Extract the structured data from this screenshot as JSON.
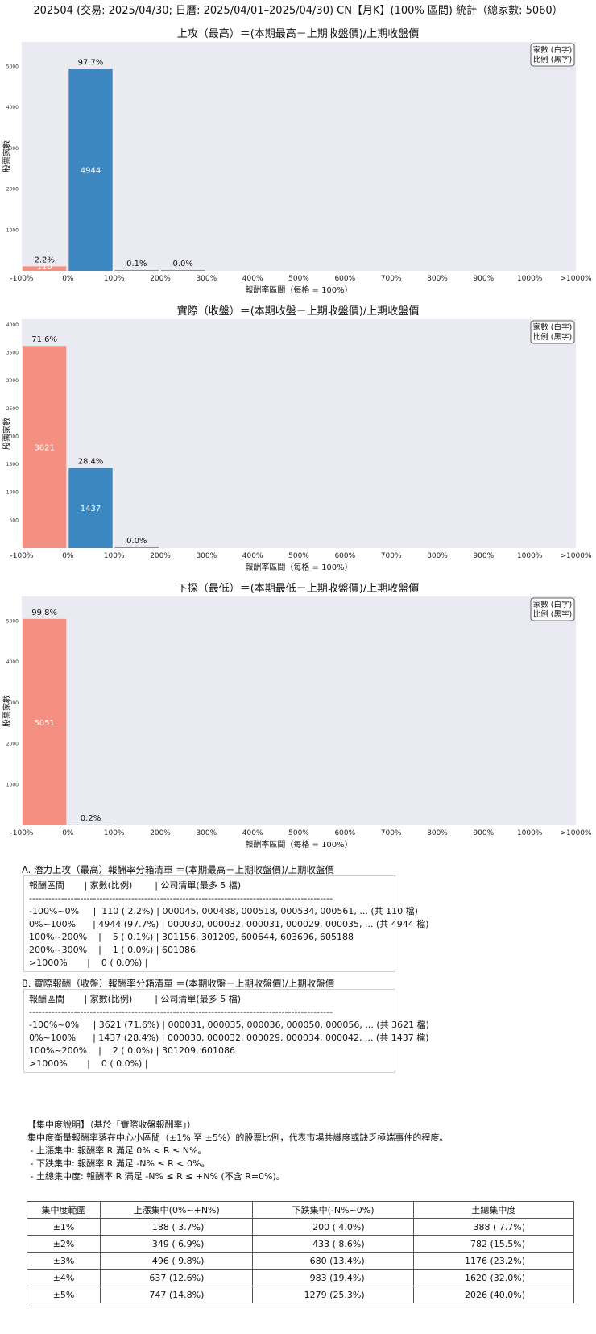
{
  "page_title": "202504 (交易: 2025/04/30; 日曆: 2025/04/01–2025/04/30) CN【月K】(100% 區間) 統計（總家數: 5060）",
  "colors": {
    "positive": "#3d87c0",
    "negative": "#f58f82",
    "plot_bg": "#eaeaf2"
  },
  "chart_data": [
    {
      "type": "bar",
      "title": "上攻（最高）＝(本期最高－上期收盤價)/上期收盤價",
      "xlabel": "報酬率區間（每格 = 100%）",
      "ylabel": "股票家數",
      "legend": [
        "家數 (白字)",
        "比例 (黑字)"
      ],
      "legend_position": "top-right",
      "x_tick_labels": [
        "-100%",
        "0%",
        "100%",
        "200%",
        "300%",
        "400%",
        "500%",
        "600%",
        "700%",
        "800%",
        "900%",
        "1000%",
        ">1000%"
      ],
      "y_ticks": [
        1000,
        2000,
        3000,
        4000,
        5000
      ],
      "ylim": [
        0,
        5600
      ],
      "bars": [
        {
          "bin": "-100%~0%",
          "count": 110,
          "pct_label": "2.2%",
          "count_label": "110",
          "sign": "negative"
        },
        {
          "bin": "0%~100%",
          "count": 4944,
          "pct_label": "97.7%",
          "count_label": "4944",
          "sign": "positive"
        },
        {
          "bin": "100%~200%",
          "count": 5,
          "pct_label": "0.1%",
          "count_label": "",
          "sign": "positive"
        },
        {
          "bin": "200%~300%",
          "count": 1,
          "pct_label": "0.0%",
          "count_label": "",
          "sign": "positive"
        }
      ]
    },
    {
      "type": "bar",
      "title": "實際（收盤）＝(本期收盤－上期收盤價)/上期收盤價",
      "xlabel": "報酬率區間（每格 = 100%）",
      "ylabel": "股票家數",
      "legend": [
        "家數 (白字)",
        "比例 (黑字)"
      ],
      "legend_position": "top-right",
      "x_tick_labels": [
        "-100%",
        "0%",
        "100%",
        "200%",
        "300%",
        "400%",
        "500%",
        "600%",
        "700%",
        "800%",
        "900%",
        "1000%",
        ">1000%"
      ],
      "y_ticks": [
        500,
        1000,
        1500,
        2000,
        2500,
        3000,
        3500,
        4000
      ],
      "ylim": [
        0,
        4100
      ],
      "bars": [
        {
          "bin": "-100%~0%",
          "count": 3621,
          "pct_label": "71.6%",
          "count_label": "3621",
          "sign": "negative"
        },
        {
          "bin": "0%~100%",
          "count": 1437,
          "pct_label": "28.4%",
          "count_label": "1437",
          "sign": "positive"
        },
        {
          "bin": "100%~200%",
          "count": 2,
          "pct_label": "0.0%",
          "count_label": "",
          "sign": "positive"
        }
      ]
    },
    {
      "type": "bar",
      "title": "下探（最低）＝(本期最低－上期收盤價)/上期收盤價",
      "xlabel": "報酬率區間（每格 = 100%）",
      "ylabel": "股票家數",
      "legend": [
        "家數 (白字)",
        "比例 (黑字)"
      ],
      "legend_position": "top-right",
      "x_tick_labels": [
        "-100%",
        "0%",
        "100%",
        "200%",
        "300%",
        "400%",
        "500%",
        "600%",
        "700%",
        "800%",
        "900%",
        "1000%",
        ">1000%"
      ],
      "y_ticks": [
        1000,
        2000,
        3000,
        4000,
        5000
      ],
      "ylim": [
        0,
        5600
      ],
      "bars": [
        {
          "bin": "-100%~0%",
          "count": 5051,
          "pct_label": "99.8%",
          "count_label": "5051",
          "sign": "negative"
        },
        {
          "bin": "0%~100%",
          "count": 9,
          "pct_label": "0.2%",
          "count_label": "",
          "sign": "positive"
        }
      ]
    }
  ],
  "section_a": {
    "heading": "A. 潛力上攻（最高）報酬率分箱清單 ＝(本期最高－上期收盤價)/上期收盤價",
    "lines": [
      "報酬區間       | 家數(比例)        | 公司清單(最多 5 檔)",
      "-----------------------------------------------------------------------------------------------",
      "-100%~0%     |  110 ( 2.2%) | 000045, 000488, 000518, 000534, 000561, ... (共 110 檔)",
      "0%~100%      | 4944 (97.7%) | 000030, 000032, 000031, 000029, 000035, ... (共 4944 檔)",
      "100%~200%    |    5 ( 0.1%) | 301156, 301209, 600644, 603696, 605188",
      "200%~300%    |    1 ( 0.0%) | 601086",
      ">1000%       |    0 ( 0.0%) |"
    ]
  },
  "section_b": {
    "heading": "B. 實際報酬（收盤）報酬率分箱清單 ＝(本期收盤－上期收盤價)/上期收盤價",
    "lines": [
      "報酬區間       | 家數(比例)        | 公司清單(最多 5 檔)",
      "-----------------------------------------------------------------------------------------------",
      "-100%~0%     | 3621 (71.6%) | 000031, 000035, 000036, 000050, 000056, ... (共 3621 檔)",
      "0%~100%      | 1437 (28.4%) | 000030, 000032, 000029, 000034, 000042, ... (共 1437 檔)",
      "100%~200%    |    2 ( 0.0%) | 301209, 601086",
      ">1000%       |    0 ( 0.0%) |"
    ]
  },
  "concentration": {
    "title": "【集中度說明】（基於「實際收盤報酬率」）",
    "lines": [
      "集中度衡量報酬率落在中心小區間（±1% 至 ±5%）的股票比例，代表市場共識度或缺乏極端事件的程度。",
      " - 上漲集中: 報酬率 R 滿足 0% < R ≤ N%。",
      " - 下跌集中: 報酬率 R 滿足 -N% ≤ R < 0%。",
      " - 土總集中度: 報酬率 R 滿足 -N% ≤ R ≤ +N% (不含 R=0%)。"
    ],
    "table": {
      "headers": [
        "集中度範圍",
        "上漲集中(0%~+N%)",
        "下跌集中(-N%~0%)",
        "土總集中度"
      ],
      "rows": [
        [
          "±1%",
          "188 ( 3.7%)",
          "200 ( 4.0%)",
          "388 ( 7.7%)"
        ],
        [
          "±2%",
          "349 ( 6.9%)",
          "433 ( 8.6%)",
          "782 (15.5%)"
        ],
        [
          "±3%",
          "496 ( 9.8%)",
          "680 (13.4%)",
          "1176 (23.2%)"
        ],
        [
          "±4%",
          "637 (12.6%)",
          "983 (19.4%)",
          "1620 (32.0%)"
        ],
        [
          "±5%",
          "747 (14.8%)",
          "1279 (25.3%)",
          "2026 (40.0%)"
        ]
      ]
    }
  }
}
